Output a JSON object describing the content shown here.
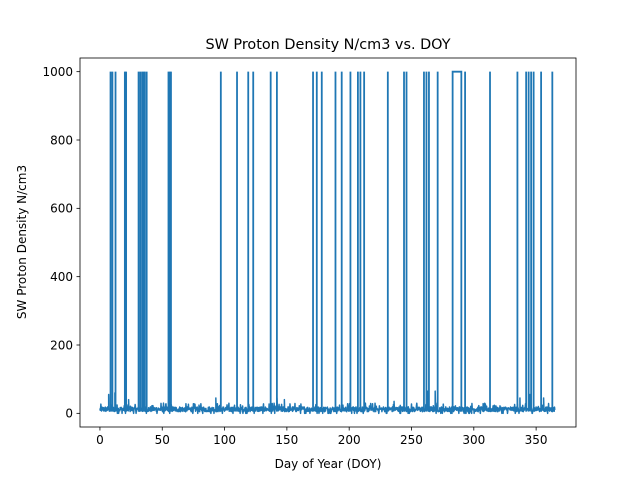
{
  "chart_data": {
    "type": "line",
    "title": "SW Proton Density N/cm3 vs. DOY",
    "xlabel": "Day of Year (DOY)",
    "ylabel": "SW Proton Density N/cm3",
    "xlim": [
      -16,
      382
    ],
    "ylim": [
      -40,
      1040
    ],
    "x_ticks": [
      0,
      50,
      100,
      150,
      200,
      250,
      300,
      350
    ],
    "y_ticks": [
      0,
      200,
      400,
      600,
      800,
      1000
    ],
    "grid": false,
    "legend": "none",
    "series": [
      {
        "color": "#1f77b4",
        "baseline_noise": {
          "x_start": 0,
          "x_end": 365,
          "min": 0,
          "max": 30
        },
        "local_peaks": [
          {
            "x": 7,
            "y": 55
          },
          {
            "x": 12,
            "y": 60
          },
          {
            "x": 23,
            "y": 40
          },
          {
            "x": 93,
            "y": 45
          },
          {
            "x": 142,
            "y": 45
          },
          {
            "x": 148,
            "y": 40
          },
          {
            "x": 236,
            "y": 35
          },
          {
            "x": 263,
            "y": 65
          },
          {
            "x": 269,
            "y": 65
          },
          {
            "x": 337,
            "y": 45
          },
          {
            "x": 345,
            "y": 55
          },
          {
            "x": 356,
            "y": 45
          }
        ],
        "spikes": [
          {
            "x": 8.5,
            "y": 1000
          },
          {
            "x": 10,
            "y": 1000
          },
          {
            "x": 12.5,
            "y": 1000
          },
          {
            "x": 20,
            "y": 1000
          },
          {
            "x": 21,
            "y": 1000
          },
          {
            "x": 31,
            "y": 1000
          },
          {
            "x": 32.5,
            "y": 1000
          },
          {
            "x": 34,
            "y": 1000
          },
          {
            "x": 35,
            "y": 1000
          },
          {
            "x": 36,
            "y": 1000
          },
          {
            "x": 37.5,
            "y": 1000
          },
          {
            "x": 55,
            "y": 1000
          },
          {
            "x": 56,
            "y": 1000
          },
          {
            "x": 57,
            "y": 1000
          },
          {
            "x": 97,
            "y": 1000
          },
          {
            "x": 110,
            "y": 1000
          },
          {
            "x": 119,
            "y": 1000
          },
          {
            "x": 123,
            "y": 1000
          },
          {
            "x": 137,
            "y": 1000
          },
          {
            "x": 142,
            "y": 1000
          },
          {
            "x": 171,
            "y": 1000
          },
          {
            "x": 174,
            "y": 1000
          },
          {
            "x": 178,
            "y": 1000
          },
          {
            "x": 189,
            "y": 1000
          },
          {
            "x": 194,
            "y": 1000
          },
          {
            "x": 201,
            "y": 1000
          },
          {
            "x": 207,
            "y": 1000
          },
          {
            "x": 209,
            "y": 1000
          },
          {
            "x": 212,
            "y": 1000
          },
          {
            "x": 231,
            "y": 1000
          },
          {
            "x": 244,
            "y": 1000
          },
          {
            "x": 246,
            "y": 1000
          },
          {
            "x": 260,
            "y": 1000
          },
          {
            "x": 262,
            "y": 1000
          },
          {
            "x": 264,
            "y": 1000
          },
          {
            "x": 271,
            "y": 1000
          },
          {
            "x": 293,
            "y": 1000
          },
          {
            "x": 313,
            "y": 1000
          },
          {
            "x": 335,
            "y": 1000
          },
          {
            "x": 342,
            "y": 1000
          },
          {
            "x": 344,
            "y": 1000
          },
          {
            "x": 346,
            "y": 1000
          },
          {
            "x": 348,
            "y": 1000
          },
          {
            "x": 354,
            "y": 1000
          },
          {
            "x": 363,
            "y": 1000
          }
        ],
        "plateaus": [
          {
            "x_start": 283,
            "x_end": 290,
            "y": 1000
          }
        ]
      }
    ]
  }
}
